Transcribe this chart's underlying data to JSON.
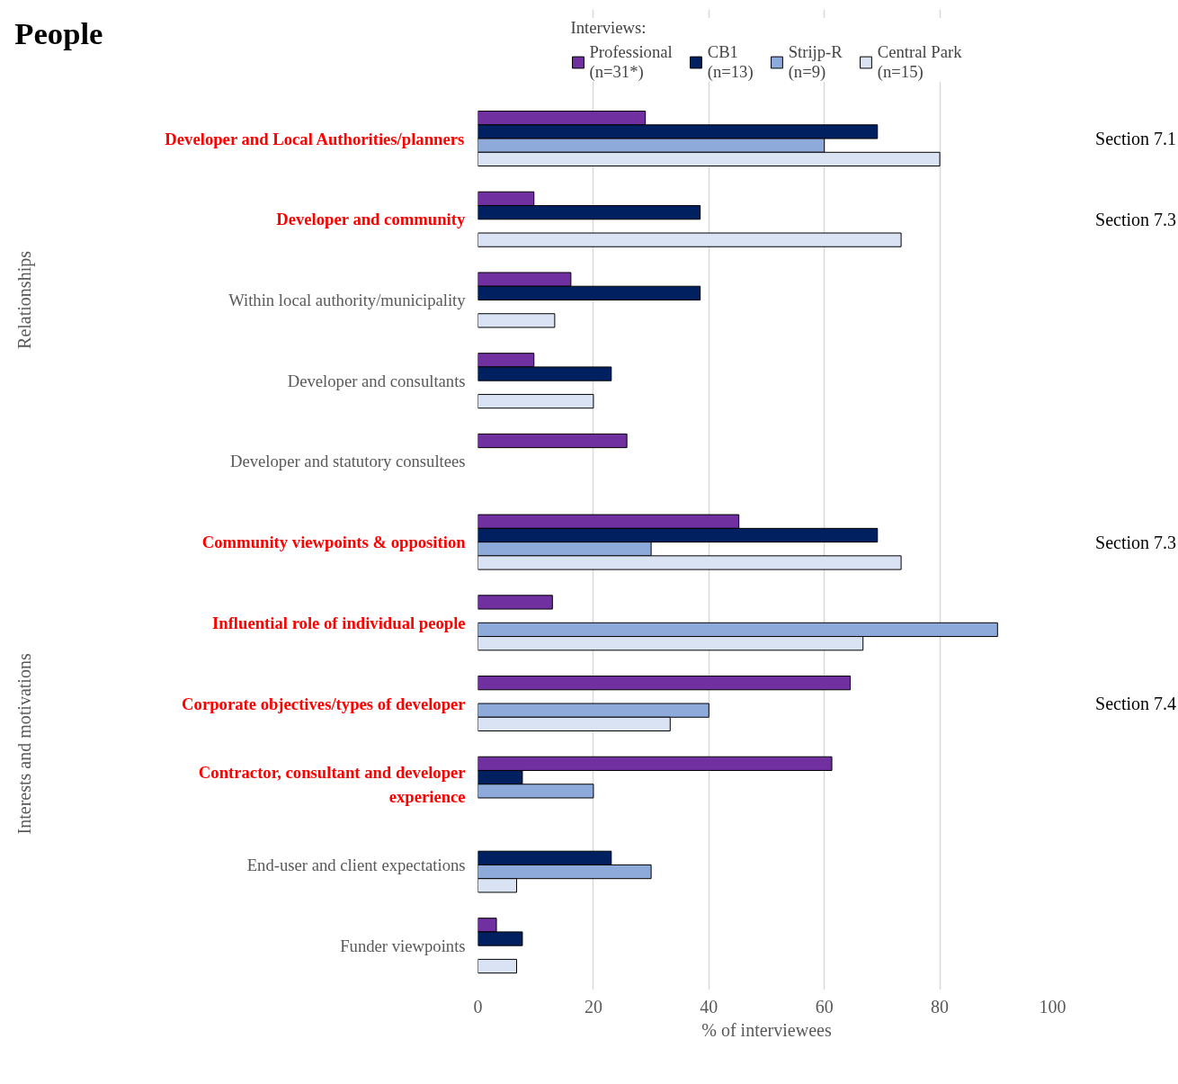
{
  "chart_data": {
    "type": "bar",
    "orientation": "horizontal",
    "title": "People",
    "legend_title": "Interviews:",
    "xlabel": "% of interviewees",
    "categories": [
      "Developer and Local Authorities/planners",
      "Developer and community",
      "Within local authority/municipality",
      "Developer and consultants",
      "Developer and statutory consultees",
      "Community viewpoints & opposition",
      "Influential role of individual people",
      "Corporate objectives/types of developer",
      "Contractor, consultant and developer experience",
      "End-user and client expectations",
      "Funder viewpoints"
    ],
    "series": [
      {
        "name": "Professional (n=31*)",
        "color": "#7030a0",
        "values": [
          29,
          9.7,
          16.1,
          9.7,
          25.8,
          45.2,
          12.9,
          64.5,
          61.3,
          null,
          3.2
        ]
      },
      {
        "name": "CB1 (n=13)",
        "color": "#002060",
        "values": [
          69.2,
          38.5,
          38.5,
          23.1,
          null,
          69.2,
          null,
          null,
          7.7,
          23.1,
          7.7
        ]
      },
      {
        "name": "Strijp-R (n=9)",
        "color": "#8eaadb",
        "values": [
          60,
          null,
          null,
          null,
          null,
          30,
          90,
          40,
          20,
          30,
          null
        ]
      },
      {
        "name": "Central Park (n=15)",
        "color": "#dae3f3",
        "values": [
          80,
          73.3,
          13.3,
          20,
          null,
          73.3,
          66.7,
          33.3,
          null,
          6.7,
          6.7
        ]
      }
    ],
    "xlim": [
      0,
      100
    ],
    "xticks": [
      0,
      20,
      40,
      60,
      80,
      100
    ],
    "grid": "x",
    "legend": "top",
    "annotations": [
      "Relationships",
      "Interests and motivations",
      "Section 7.1",
      "Section 7.3",
      "Section 7.3",
      "Section 7.4"
    ]
  }
}
